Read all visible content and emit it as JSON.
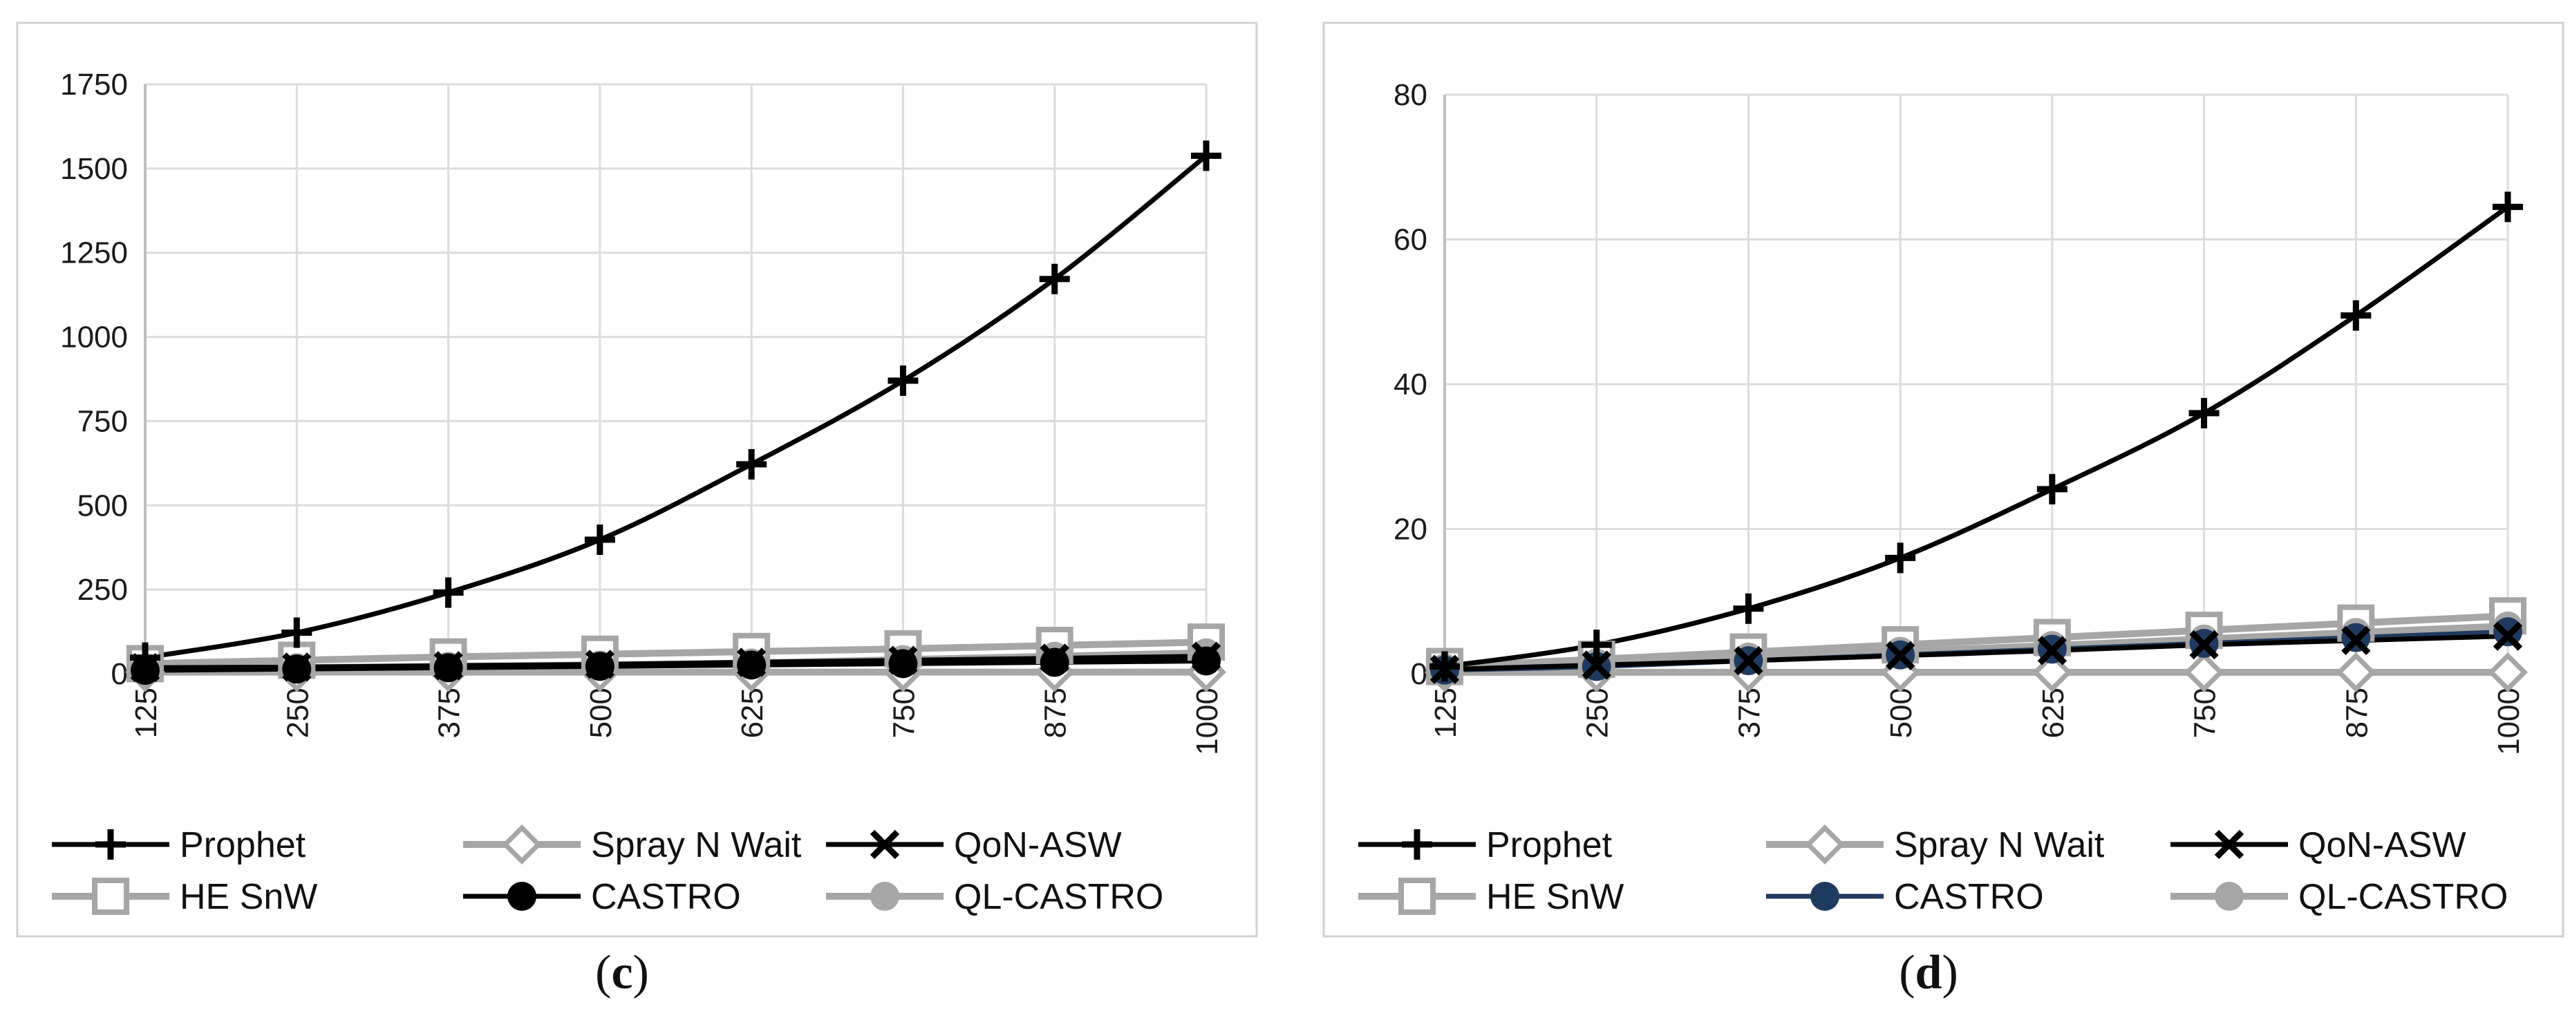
{
  "chart_data": [
    {
      "type": "line",
      "caption_open": "(",
      "caption_letter": "c",
      "caption_close": ")",
      "title": "",
      "xlabel": "",
      "ylabel": "",
      "categories": [
        "125",
        "250",
        "375",
        "500",
        "625",
        "750",
        "875",
        "1000"
      ],
      "yticks": [
        "0",
        "250",
        "500",
        "750",
        "1000",
        "1250",
        "1500",
        "1750"
      ],
      "ylim": [
        0,
        1750
      ],
      "grid": true,
      "legend_position": "bottom",
      "series": [
        {
          "name": "Prophet",
          "values": [
            48,
            122,
            241,
            398,
            622,
            870,
            1172,
            1538
          ],
          "color": "#000000",
          "marker": "plus"
        },
        {
          "name": "Spray N Wait",
          "values": [
            5,
            5,
            5,
            5,
            5,
            5,
            5,
            5
          ],
          "color": "#a6a6a6",
          "marker": "diamond"
        },
        {
          "name": "QoN-ASW",
          "values": [
            18,
            20,
            24,
            28,
            34,
            40,
            46,
            52
          ],
          "color": "#000000",
          "marker": "x"
        },
        {
          "name": "HE SnW",
          "values": [
            30,
            40,
            50,
            58,
            66,
            74,
            84,
            94
          ],
          "color": "#a6a6a6",
          "marker": "square"
        },
        {
          "name": "CASTRO",
          "values": [
            10,
            14,
            18,
            22,
            26,
            30,
            34,
            38
          ],
          "color": "#000000",
          "marker": "circle"
        },
        {
          "name": "QL-CASTRO",
          "values": [
            15,
            18,
            22,
            26,
            32,
            42,
            52,
            62
          ],
          "color": "#a6a6a6",
          "marker": "circle"
        }
      ]
    },
    {
      "type": "line",
      "caption_open": "(",
      "caption_letter": "d",
      "caption_close": ")",
      "title": "",
      "xlabel": "",
      "ylabel": "",
      "categories": [
        "125",
        "250",
        "375",
        "500",
        "625",
        "750",
        "875",
        "1000"
      ],
      "yticks": [
        "0",
        "20",
        "40",
        "60",
        "80"
      ],
      "ylim": [
        0,
        80
      ],
      "grid": true,
      "legend_position": "bottom",
      "series": [
        {
          "name": "Prophet",
          "values": [
            1.0,
            4.0,
            9.0,
            16.0,
            25.5,
            36.0,
            49.5,
            64.5
          ],
          "color": "#000000",
          "marker": "plus"
        },
        {
          "name": "Spray N Wait",
          "values": [
            0.2,
            0.2,
            0.2,
            0.2,
            0.2,
            0.2,
            0.2,
            0.2
          ],
          "color": "#a6a6a6",
          "marker": "diamond"
        },
        {
          "name": "QoN-ASW",
          "values": [
            0.6,
            1.2,
            1.8,
            2.5,
            3.2,
            4.0,
            4.6,
            5.2
          ],
          "color": "#000000",
          "marker": "x"
        },
        {
          "name": "HE SnW",
          "values": [
            1.0,
            2.0,
            3.0,
            4.0,
            5.0,
            6.0,
            7.0,
            8.0
          ],
          "color": "#a6a6a6",
          "marker": "square"
        },
        {
          "name": "CASTRO",
          "values": [
            0.5,
            1.0,
            1.8,
            2.6,
            3.4,
            4.2,
            5.0,
            5.8
          ],
          "color": "#1f3a5f",
          "marker": "circle"
        },
        {
          "name": "QL-CASTRO",
          "values": [
            0.8,
            1.5,
            2.3,
            3.1,
            3.9,
            4.8,
            5.7,
            6.6
          ],
          "color": "#a6a6a6",
          "marker": "circle"
        }
      ]
    }
  ]
}
